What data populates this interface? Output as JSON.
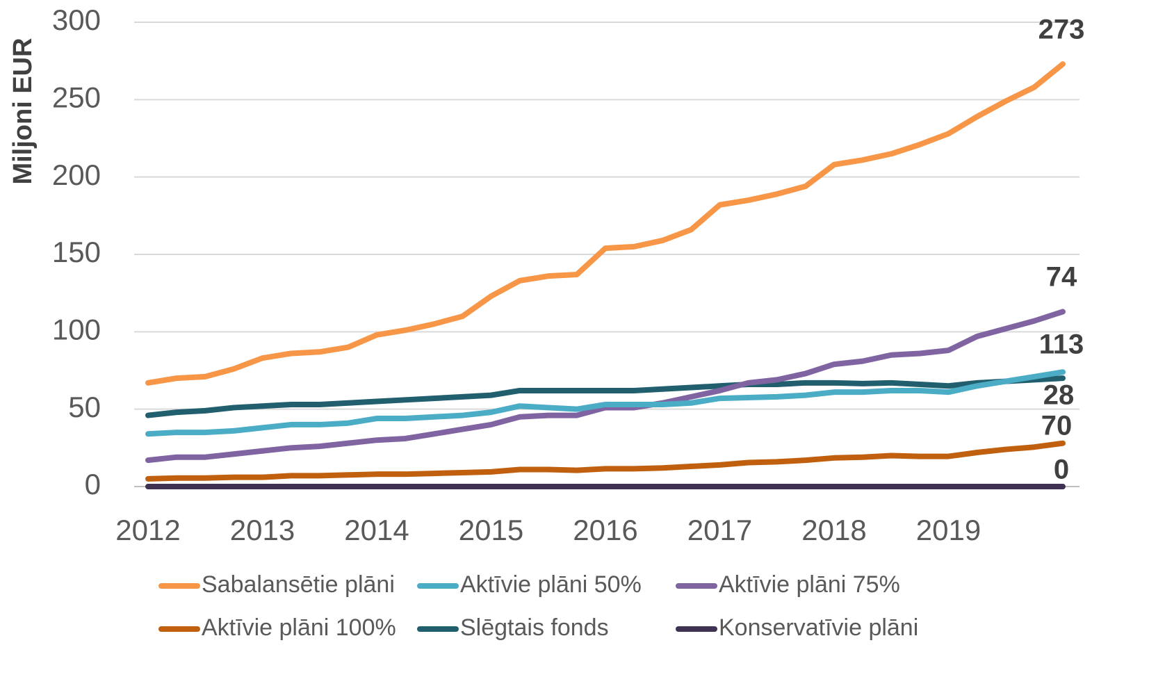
{
  "chart_data": {
    "type": "line",
    "y_label": "Miljoni EUR",
    "categories": [
      "2012",
      null,
      null,
      null,
      "2013",
      null,
      null,
      null,
      "2014",
      null,
      null,
      null,
      "2015",
      null,
      null,
      null,
      "2016",
      null,
      null,
      null,
      "2017",
      null,
      null,
      null,
      "2018",
      null,
      null,
      null,
      "2019",
      null,
      null,
      null,
      null
    ],
    "ylim": [
      0,
      300
    ],
    "yticks": [
      0,
      50,
      100,
      150,
      200,
      250,
      300
    ],
    "grid": true,
    "series": [
      {
        "name": "Sabalansētie plāni",
        "color": "#f79646",
        "values": [
          67,
          70,
          71,
          76,
          83,
          86,
          87,
          90,
          98,
          101,
          105,
          110,
          123,
          133,
          136,
          137,
          154,
          155,
          159,
          166,
          182,
          185,
          189,
          194,
          208,
          211,
          215,
          221,
          228,
          239,
          249,
          258,
          273
        ]
      },
      {
        "name": "Aktīvie plāni 50%",
        "color": "#4bacc6",
        "values": [
          34,
          35,
          35,
          36,
          38,
          40,
          40,
          41,
          44,
          44,
          45,
          46,
          48,
          52,
          51,
          50,
          53,
          53,
          53,
          54,
          57,
          57.5,
          58,
          59,
          61,
          61,
          62,
          62,
          61,
          65,
          68,
          71,
          74
        ]
      },
      {
        "name": "Aktīvie plāni 75%",
        "color": "#8064a2",
        "values": [
          17,
          19,
          19,
          21,
          23,
          25,
          26,
          28,
          30,
          31,
          34,
          37,
          40,
          45,
          46,
          46,
          51,
          51,
          54,
          58,
          62,
          67,
          69,
          73,
          79,
          81,
          85,
          86,
          88,
          97,
          102,
          107,
          113
        ]
      },
      {
        "name": "Aktīvie plāni 100%",
        "color": "#c0600f",
        "values": [
          5,
          5.5,
          5.5,
          6,
          6,
          7,
          7,
          7.5,
          8,
          8,
          8.5,
          9,
          9.5,
          11,
          11,
          10.5,
          11.5,
          11.5,
          12,
          13,
          14,
          15.5,
          16,
          17,
          18.5,
          19,
          20,
          19.5,
          19.5,
          22,
          24,
          25.5,
          28
        ]
      },
      {
        "name": "Slēgtais fonds",
        "color": "#215f6e",
        "values": [
          46,
          48,
          49,
          51,
          52,
          53,
          53,
          54,
          55,
          56,
          57,
          58,
          59,
          62,
          62,
          62,
          62,
          62,
          63,
          64,
          65,
          66,
          66,
          67,
          67,
          66.5,
          67,
          66,
          65,
          67,
          68,
          69,
          70
        ]
      },
      {
        "name": "Konservatīvie plāni",
        "color": "#3f3151",
        "values": [
          0,
          0,
          0,
          0,
          0,
          0,
          0,
          0,
          0,
          0,
          0,
          0,
          0,
          0,
          0,
          0,
          0,
          0,
          0,
          0,
          0,
          0,
          0,
          0,
          0,
          0,
          0,
          0,
          0,
          0,
          0,
          0,
          0
        ]
      }
    ]
  }
}
